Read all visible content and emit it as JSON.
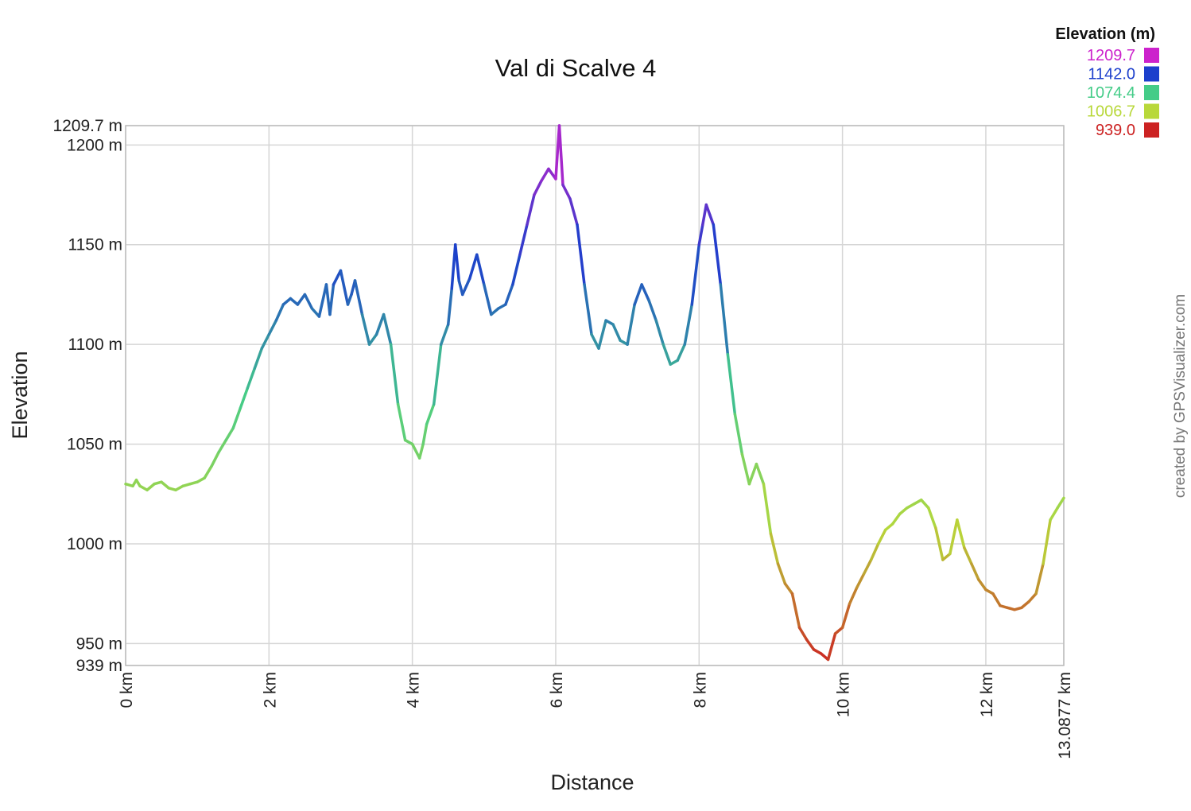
{
  "chart_data": {
    "type": "line",
    "title": "Val di Scalve 4",
    "xlabel": "Distance",
    "ylabel": "Elevation",
    "credit": "created by GPSVisualizer.com",
    "xlim": [
      0,
      13.0877
    ],
    "ylim": [
      939,
      1209.7
    ],
    "x_ticks": [
      {
        "value": 0,
        "label": "0 km"
      },
      {
        "value": 2,
        "label": "2 km"
      },
      {
        "value": 4,
        "label": "4 km"
      },
      {
        "value": 6,
        "label": "6 km"
      },
      {
        "value": 8,
        "label": "8 km"
      },
      {
        "value": 10,
        "label": "10 km"
      },
      {
        "value": 12,
        "label": "12 km"
      },
      {
        "value": 13.0877,
        "label": "13.0877 km"
      }
    ],
    "y_ticks": [
      {
        "value": 939,
        "label": "939 m"
      },
      {
        "value": 950,
        "label": "950 m"
      },
      {
        "value": 1000,
        "label": "1000 m"
      },
      {
        "value": 1050,
        "label": "1050 m"
      },
      {
        "value": 1100,
        "label": "1100 m"
      },
      {
        "value": 1150,
        "label": "1150 m"
      },
      {
        "value": 1200,
        "label": "1200 m"
      },
      {
        "value": 1209.7,
        "label": "1209.7 m"
      }
    ],
    "legend": {
      "title": "Elevation (m)",
      "placement": "top-right",
      "items": [
        {
          "label": "1209.7",
          "value": 1209.7,
          "color": "#cc22cc"
        },
        {
          "label": "1142.0",
          "value": 1142.0,
          "color": "#1c3fcc"
        },
        {
          "label": "1074.4",
          "value": 1074.4,
          "color": "#44cc88"
        },
        {
          "label": "1006.7",
          "value": 1006.7,
          "color": "#b8d83a"
        },
        {
          "label": "939.0",
          "value": 939.0,
          "color": "#cc2222"
        }
      ]
    },
    "series": [
      {
        "x": [
          0,
          0.1,
          0.15,
          0.2,
          0.3,
          0.4,
          0.5,
          0.6,
          0.7,
          0.8,
          0.9,
          1.0,
          1.1,
          1.2,
          1.3,
          1.4,
          1.5,
          1.6,
          1.7,
          1.8,
          1.9,
          2.0,
          2.1,
          2.2,
          2.3,
          2.4,
          2.5,
          2.6,
          2.7,
          2.8,
          2.85,
          2.9,
          3.0,
          3.1,
          3.15,
          3.2,
          3.3,
          3.4,
          3.5,
          3.6,
          3.7,
          3.8,
          3.9,
          4.0,
          4.1,
          4.15,
          4.2,
          4.3,
          4.4,
          4.5,
          4.55,
          4.6,
          4.65,
          4.7,
          4.8,
          4.9,
          5.0,
          5.1,
          5.2,
          5.3,
          5.4,
          5.5,
          5.6,
          5.7,
          5.8,
          5.9,
          6.0,
          6.05,
          6.1,
          6.2,
          6.3,
          6.4,
          6.5,
          6.6,
          6.7,
          6.8,
          6.9,
          7.0,
          7.1,
          7.2,
          7.3,
          7.4,
          7.5,
          7.6,
          7.7,
          7.8,
          7.9,
          8.0,
          8.05,
          8.1,
          8.15,
          8.2,
          8.3,
          8.4,
          8.5,
          8.6,
          8.7,
          8.8,
          8.9,
          9.0,
          9.1,
          9.2,
          9.3,
          9.4,
          9.5,
          9.6,
          9.7,
          9.8,
          9.9,
          10.0,
          10.1,
          10.2,
          10.3,
          10.4,
          10.5,
          10.6,
          10.7,
          10.8,
          10.9,
          11.0,
          11.1,
          11.2,
          11.3,
          11.4,
          11.5,
          11.6,
          11.7,
          11.8,
          11.9,
          12.0,
          12.1,
          12.2,
          12.3,
          12.4,
          12.5,
          12.6,
          12.7,
          12.8,
          12.9,
          13.0,
          13.0877
        ],
        "y": [
          1030,
          1029,
          1032,
          1029,
          1027,
          1030,
          1031,
          1028,
          1027,
          1029,
          1030,
          1031,
          1033,
          1039,
          1046,
          1052,
          1058,
          1068,
          1078,
          1088,
          1098,
          1105,
          1112,
          1120,
          1123,
          1120,
          1125,
          1118,
          1114,
          1130,
          1115,
          1130,
          1137,
          1120,
          1125,
          1132,
          1115,
          1100,
          1105,
          1115,
          1100,
          1070,
          1052,
          1050,
          1043,
          1050,
          1060,
          1070,
          1100,
          1110,
          1128,
          1150,
          1132,
          1125,
          1133,
          1145,
          1130,
          1115,
          1118,
          1120,
          1130,
          1145,
          1160,
          1175,
          1182,
          1188,
          1183,
          1209.7,
          1180,
          1173,
          1160,
          1130,
          1105,
          1098,
          1112,
          1110,
          1102,
          1100,
          1120,
          1130,
          1122,
          1112,
          1100,
          1090,
          1092,
          1100,
          1120,
          1150,
          1160,
          1170,
          1165,
          1160,
          1130,
          1095,
          1065,
          1045,
          1030,
          1040,
          1030,
          1005,
          990,
          980,
          975,
          958,
          952,
          947,
          945,
          942,
          955,
          958,
          970,
          978,
          985,
          992,
          1000,
          1007,
          1010,
          1015,
          1018,
          1020,
          1022,
          1018,
          1008,
          992,
          995,
          1012,
          998,
          990,
          982,
          977,
          975,
          969,
          968,
          967,
          968,
          971,
          975,
          990,
          1012,
          1018,
          1023
        ]
      }
    ]
  }
}
